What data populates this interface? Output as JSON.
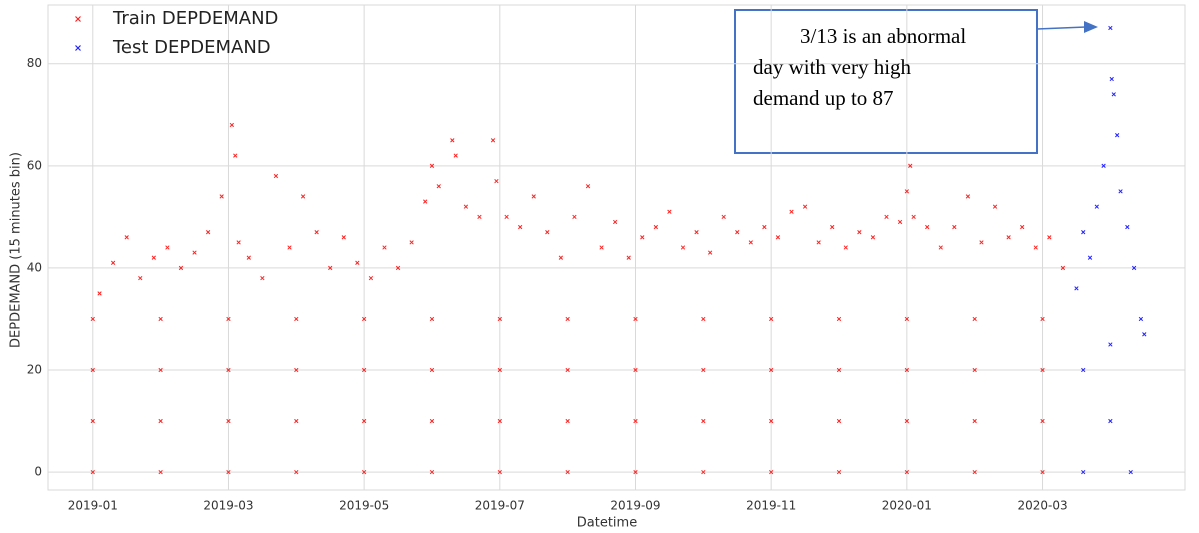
{
  "chart_data": {
    "type": "scatter",
    "ylabel": "DEPDEMAND (15 minutes bin)",
    "xlabel": "Datetime",
    "xlim": [
      -0.66,
      16.1
    ],
    "ylim": [
      -3.5,
      91.5
    ],
    "xticks": [
      {
        "value": 0,
        "label": "2019-01"
      },
      {
        "value": 2,
        "label": "2019-03"
      },
      {
        "value": 4,
        "label": "2019-05"
      },
      {
        "value": 6,
        "label": "2019-07"
      },
      {
        "value": 8,
        "label": "2019-09"
      },
      {
        "value": 10,
        "label": "2019-11"
      },
      {
        "value": 12,
        "label": "2020-01"
      },
      {
        "value": 14,
        "label": "2020-03"
      }
    ],
    "yticks": [
      0,
      20,
      40,
      60,
      80
    ],
    "grid": true,
    "legend": "upper left",
    "annotation": [
      "3/13 is an abnormal",
      "day with very high",
      "demand up to 87"
    ],
    "series": [
      {
        "name": "Train DEPDEMAND",
        "color": "#ff2020",
        "x": [
          0.1,
          0.3,
          0.5,
          0.7,
          0.9,
          1.1,
          1.3,
          1.5,
          1.7,
          1.9,
          2.05,
          2.1,
          2.15,
          2.3,
          2.5,
          2.7,
          2.9,
          3.1,
          3.3,
          3.5,
          3.7,
          3.9,
          4.1,
          4.3,
          4.5,
          4.7,
          4.9,
          5.0,
          5.1,
          5.3,
          5.35,
          5.5,
          5.7,
          5.9,
          5.95,
          6.1,
          6.3,
          6.5,
          6.7,
          6.9,
          7.1,
          7.3,
          7.5,
          7.7,
          7.9,
          8.1,
          8.3,
          8.5,
          8.7,
          8.9,
          9.1,
          9.3,
          9.5,
          9.7,
          9.9,
          10.1,
          10.3,
          10.5,
          10.7,
          10.9,
          11.1,
          11.3,
          11.5,
          11.7,
          11.9,
          12.0,
          12.05,
          12.1,
          12.3,
          12.5,
          12.7,
          12.9,
          13.1,
          13.3,
          13.5,
          13.7,
          13.9,
          14.1,
          14.3,
          0,
          1,
          2,
          3,
          4,
          5,
          6,
          7,
          8,
          9,
          10,
          11,
          12,
          13,
          14,
          0,
          1,
          2,
          3,
          4,
          5,
          6,
          7,
          8,
          9,
          10,
          11,
          12,
          13,
          14,
          0,
          1,
          2,
          3,
          4,
          5,
          6,
          7,
          8,
          9,
          10,
          11,
          12,
          13,
          14,
          0,
          1,
          2,
          3,
          4,
          5,
          6,
          7,
          8,
          9,
          10,
          11,
          12,
          13,
          14
        ],
        "values": [
          35,
          41,
          46,
          38,
          42,
          44,
          40,
          43,
          47,
          54,
          68,
          62,
          45,
          42,
          38,
          58,
          44,
          54,
          47,
          40,
          46,
          41,
          38,
          44,
          40,
          45,
          53,
          60,
          56,
          65,
          62,
          52,
          50,
          65,
          57,
          50,
          48,
          54,
          47,
          42,
          50,
          56,
          44,
          49,
          42,
          46,
          48,
          51,
          44,
          47,
          43,
          50,
          47,
          45,
          48,
          46,
          51,
          52,
          45,
          48,
          44,
          47,
          46,
          50,
          49,
          55,
          60,
          50,
          48,
          44,
          48,
          54,
          45,
          52,
          46,
          48,
          44,
          46,
          40,
          30,
          30,
          30,
          30,
          30,
          30,
          30,
          30,
          30,
          30,
          30,
          30,
          30,
          30,
          30,
          20,
          20,
          20,
          20,
          20,
          20,
          20,
          20,
          20,
          20,
          20,
          20,
          20,
          20,
          20,
          10,
          10,
          10,
          10,
          10,
          10,
          10,
          10,
          10,
          10,
          10,
          10,
          10,
          10,
          10,
          0,
          0,
          0,
          0,
          0,
          0,
          0,
          0,
          0,
          0,
          0,
          0,
          0,
          0,
          0
        ]
      },
      {
        "name": "Test DEPDEMAND",
        "color": "#2020ff",
        "x": [
          14.5,
          14.6,
          14.7,
          14.8,
          14.9,
          15.0,
          15.02,
          15.05,
          15.1,
          15.15,
          15.25,
          15.35,
          15.45,
          15.5,
          14.6,
          15.0,
          15.3,
          14.6,
          15.0
        ],
        "values": [
          36,
          47,
          42,
          52,
          60,
          87,
          77,
          74,
          66,
          55,
          48,
          40,
          30,
          27,
          20,
          10,
          0,
          0,
          25
        ]
      }
    ]
  }
}
